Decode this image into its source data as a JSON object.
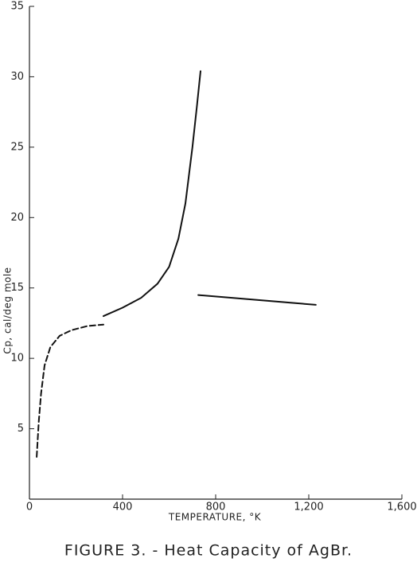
{
  "chart_data": {
    "type": "line",
    "caption": "FIGURE 3. - Heat Capacity of AgBr.",
    "x_label": "TEMPERATURE, °K",
    "y_label": "Cp, cal/deg mole",
    "xlim": [
      0,
      1600
    ],
    "ylim": [
      0,
      35
    ],
    "xticks": [
      0,
      400,
      800,
      {
        "value": 1200,
        "label": "1,200"
      },
      {
        "value": 1600,
        "label": "1,600"
      }
    ],
    "yticks": [
      5,
      10,
      15,
      20,
      25,
      30,
      35
    ],
    "series": [
      {
        "color": "#111111",
        "dashed": true,
        "x": [
          31,
          40,
          50,
          65,
          90,
          130,
          180,
          250,
          318
        ],
        "values": [
          3.0,
          5.5,
          7.5,
          9.5,
          10.8,
          11.6,
          12.0,
          12.3,
          12.4
        ]
      },
      {
        "color": "#111111",
        "dashed": false,
        "x": [
          318,
          400,
          480,
          550,
          600,
          640,
          670,
          700,
          720,
          735
        ],
        "values": [
          13.0,
          13.6,
          14.3,
          15.3,
          16.5,
          18.5,
          21.0,
          25.0,
          28.0,
          30.4
        ]
      },
      {
        "color": "#111111",
        "dashed": false,
        "x": [
          725,
          1230
        ],
        "values": [
          14.5,
          13.8
        ]
      }
    ]
  }
}
